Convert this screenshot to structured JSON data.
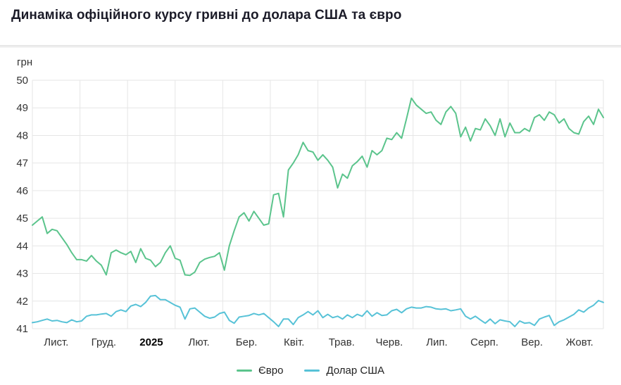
{
  "header": {
    "title": "Динаміка офіційного курсу гривні до долара США та євро"
  },
  "chart_data": {
    "type": "line",
    "title": "Динаміка офіційного курсу гривні до долара США та євро",
    "y_unit_label": "грн",
    "ylabel": "грн",
    "xlabel": "",
    "ylim": [
      41,
      50
    ],
    "y_ticks": [
      50,
      49,
      48,
      47,
      46,
      45,
      44,
      43,
      42,
      41
    ],
    "grid": true,
    "legend_position": "bottom-center",
    "x_month_labels": [
      "Лист.",
      "Груд.",
      "2025",
      "Лют.",
      "Бер.",
      "Квіт.",
      "Трав.",
      "Черв.",
      "Лип.",
      "Серп.",
      "Вер.",
      "Жовт."
    ],
    "bold_x_label": "2025",
    "grid_color": "#e6e6e6",
    "text_color": "#333333",
    "series": [
      {
        "name": "Євро",
        "color": "#5bc48c",
        "values": [
          44.75,
          44.9,
          45.05,
          44.45,
          44.6,
          44.55,
          44.3,
          44.05,
          43.75,
          43.5,
          43.5,
          43.45,
          43.65,
          43.45,
          43.3,
          42.95,
          43.75,
          43.85,
          43.75,
          43.68,
          43.8,
          43.4,
          43.9,
          43.55,
          43.48,
          43.25,
          43.4,
          43.75,
          44.0,
          43.55,
          43.48,
          42.95,
          42.93,
          43.05,
          43.4,
          43.52,
          43.58,
          43.62,
          43.75,
          43.12,
          44.0,
          44.55,
          45.05,
          45.2,
          44.9,
          45.25,
          45.0,
          44.75,
          44.8,
          45.85,
          45.9,
          45.05,
          46.75,
          47.0,
          47.3,
          47.75,
          47.45,
          47.4,
          47.1,
          47.3,
          47.1,
          46.85,
          46.1,
          46.6,
          46.45,
          46.9,
          47.05,
          47.25,
          46.85,
          47.45,
          47.3,
          47.45,
          47.9,
          47.85,
          48.1,
          47.9,
          48.6,
          49.35,
          49.1,
          48.95,
          48.8,
          48.85,
          48.55,
          48.4,
          48.85,
          49.05,
          48.8,
          47.95,
          48.3,
          47.8,
          48.25,
          48.2,
          48.6,
          48.35,
          48.0,
          48.6,
          47.95,
          48.45,
          48.1,
          48.1,
          48.25,
          48.15,
          48.65,
          48.75,
          48.55,
          48.85,
          48.75,
          48.45,
          48.6,
          48.25,
          48.1,
          48.05,
          48.5,
          48.7,
          48.4,
          48.95,
          48.65
        ]
      },
      {
        "name": "Долар США",
        "color": "#57c2d7",
        "values": [
          41.22,
          41.25,
          41.3,
          41.35,
          41.28,
          41.3,
          41.25,
          41.22,
          41.32,
          41.25,
          41.28,
          41.45,
          41.5,
          41.5,
          41.53,
          41.55,
          41.45,
          41.62,
          41.68,
          41.62,
          41.82,
          41.88,
          41.8,
          41.95,
          42.18,
          42.2,
          42.05,
          42.05,
          41.95,
          41.85,
          41.78,
          41.35,
          41.72,
          41.75,
          41.6,
          41.45,
          41.38,
          41.42,
          41.55,
          41.6,
          41.3,
          41.2,
          41.42,
          41.45,
          41.48,
          41.55,
          41.5,
          41.55,
          41.4,
          41.25,
          41.08,
          41.35,
          41.35,
          41.15,
          41.4,
          41.5,
          41.62,
          41.5,
          41.65,
          41.4,
          41.52,
          41.4,
          41.45,
          41.35,
          41.5,
          41.4,
          41.52,
          41.45,
          41.65,
          41.45,
          41.58,
          41.48,
          41.5,
          41.65,
          41.7,
          41.58,
          41.72,
          41.78,
          41.75,
          41.75,
          41.8,
          41.78,
          41.72,
          41.7,
          41.72,
          41.65,
          41.68,
          41.72,
          41.45,
          41.35,
          41.45,
          41.32,
          41.2,
          41.35,
          41.18,
          41.32,
          41.28,
          41.25,
          41.08,
          41.28,
          41.2,
          41.22,
          41.12,
          41.35,
          41.42,
          41.48,
          41.12,
          41.25,
          41.32,
          41.42,
          41.52,
          41.68,
          41.6,
          41.75,
          41.85,
          42.02,
          41.95
        ]
      }
    ]
  }
}
